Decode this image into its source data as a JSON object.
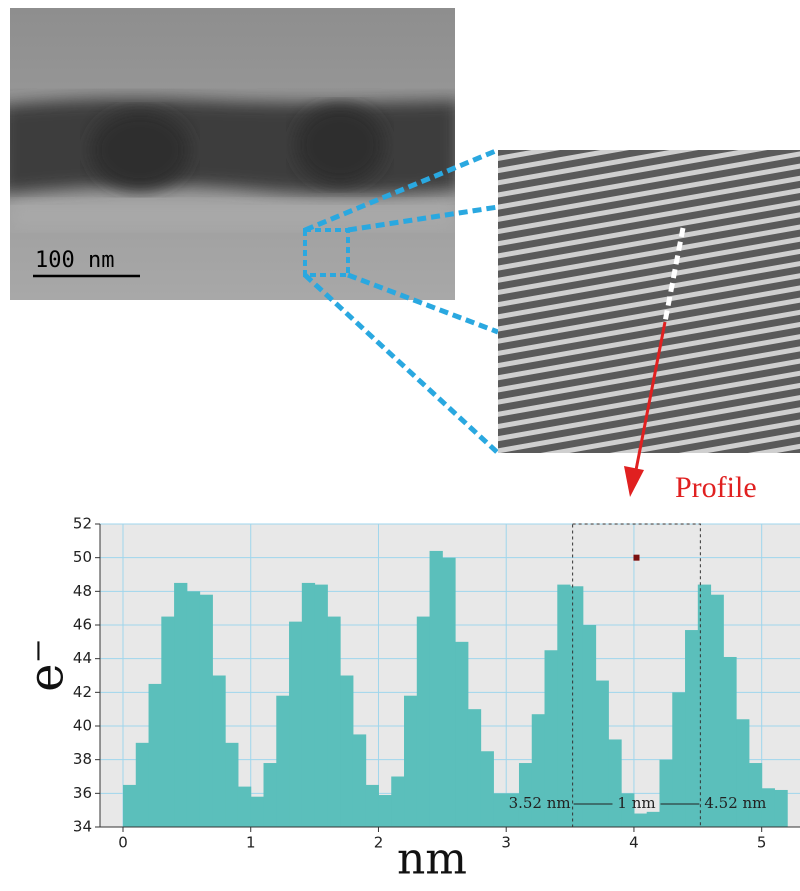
{
  "figure": {
    "scale_bar": "100 nm",
    "profile_label": "Profile"
  },
  "chart_data": {
    "type": "histogram",
    "xlabel": "nm",
    "ylabel": "e⁻",
    "bins": [
      0,
      0.1,
      0.2,
      0.3,
      0.4,
      0.5,
      0.6,
      0.7,
      0.8,
      0.9,
      1.0,
      1.1,
      1.2,
      1.3,
      1.4,
      1.5,
      1.6,
      1.7,
      1.8,
      1.9,
      2.0,
      2.1,
      2.2,
      2.3,
      2.4,
      2.5,
      2.6,
      2.7,
      2.8,
      2.9,
      3.0,
      3.1,
      3.2,
      3.3,
      3.4,
      3.5,
      3.6,
      3.7,
      3.8,
      3.9,
      4.0,
      4.1,
      4.2,
      4.3,
      4.4,
      4.5,
      4.6,
      4.7,
      4.8,
      4.9,
      5.0,
      5.1,
      5.2
    ],
    "values": [
      36.5,
      39,
      42.5,
      46.5,
      48.5,
      48,
      47.8,
      43,
      39,
      36.4,
      35.8,
      37.8,
      41.8,
      46.2,
      48.5,
      48.4,
      46.5,
      43,
      39.5,
      36.5,
      35.9,
      37,
      41.8,
      46.5,
      50.4,
      50,
      45,
      41,
      38.5,
      36,
      36,
      37.8,
      40.7,
      44.5,
      48.4,
      48.3,
      46,
      42.7,
      39.2,
      36,
      34.8,
      34.9,
      38,
      42,
      45.7,
      48.4,
      47.8,
      44.1,
      40.4,
      37.8,
      36.3,
      36.2
    ],
    "color": "#5bbfbb",
    "xlim": [
      -0.18,
      5.3
    ],
    "ylim": [
      34,
      52
    ],
    "xticks": [
      0,
      1,
      2,
      3,
      4,
      5
    ],
    "yticks": [
      34,
      36,
      38,
      40,
      42,
      44,
      46,
      48,
      50,
      52
    ],
    "grid": true,
    "dimension": {
      "start": 3.52,
      "end": 4.52,
      "start_label": "3.52 nm",
      "end_label": "4.52 nm",
      "width_label": "1 nm"
    },
    "marker": {
      "x": 4.02,
      "y": 50,
      "color": "#7a1010"
    }
  }
}
